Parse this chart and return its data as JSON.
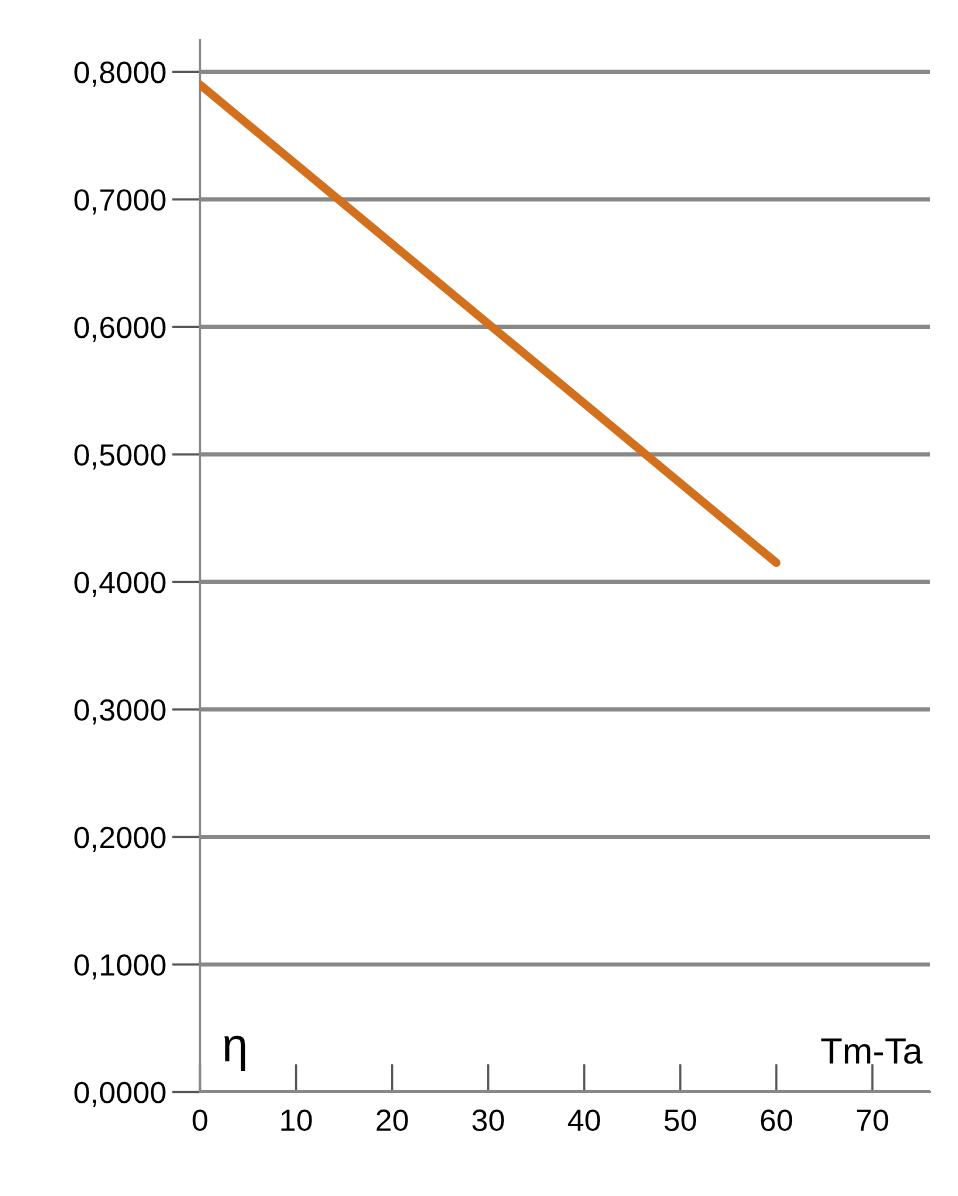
{
  "chart_data": {
    "type": "line",
    "xlabel": "Tm-Ta",
    "ylabel": "η",
    "x": [
      0,
      60
    ],
    "series": [
      {
        "color": "#d2701e",
        "values": [
          0.79,
          0.415
        ]
      }
    ],
    "xlim": [
      0,
      76
    ],
    "ylim": [
      0,
      0.825
    ],
    "xticks": [
      0,
      10,
      20,
      30,
      40,
      50,
      60,
      70
    ],
    "yticks": [
      {
        "value": 0,
        "label": "0,0000"
      },
      {
        "value": 0.1,
        "label": "0,1000"
      },
      {
        "value": 0.2,
        "label": "0,2000"
      },
      {
        "value": 0.3,
        "label": "0,3000"
      },
      {
        "value": 0.4,
        "label": "0,4000"
      },
      {
        "value": 0.5,
        "label": "0,5000"
      },
      {
        "value": 0.6,
        "label": "0,6000"
      },
      {
        "value": 0.7,
        "label": "0,7000"
      },
      {
        "value": 0.8,
        "label": "0,8000"
      }
    ],
    "grid": "y",
    "marker": "none",
    "line_style": "solid"
  }
}
